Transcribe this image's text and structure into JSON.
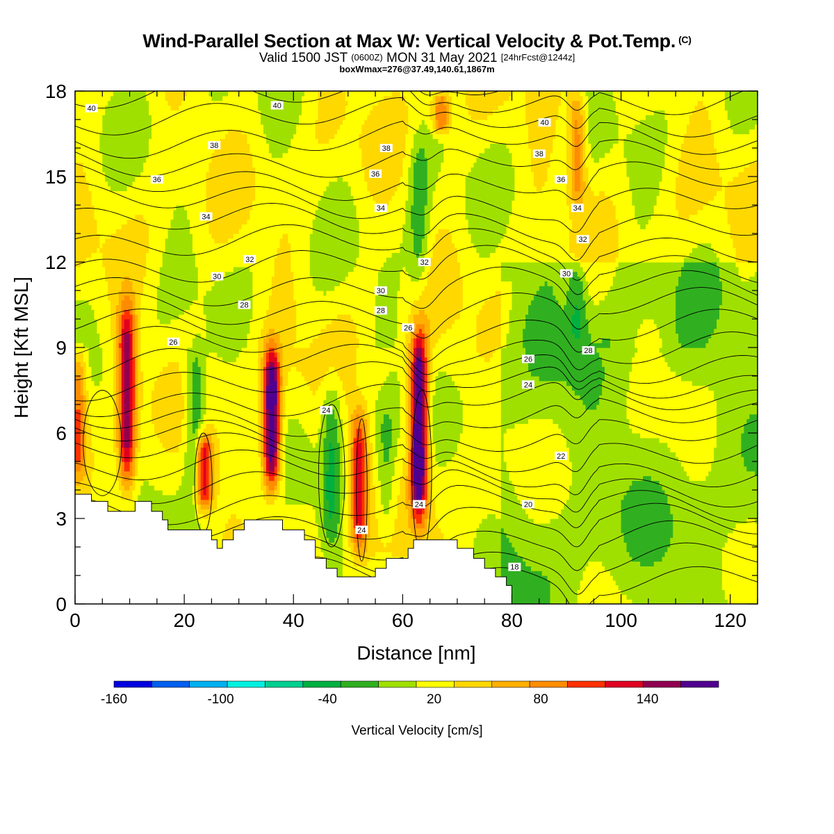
{
  "title": "Wind-Parallel Section at Max W: Vertical Velocity & Pot.Temp.",
  "title_mark": "(C)",
  "subtitle": {
    "valid": "Valid 1500 JST",
    "utc": "(0600Z)",
    "date": "MON 31 May 2021",
    "fcst": "[24hrFcst@1244z]"
  },
  "boxline": "boxWmax=276@37.49,140.61,1867m",
  "chart_data": {
    "type": "heatmap",
    "xlabel": "Distance [nm]",
    "ylabel": "Height [Kft MSL]",
    "xlim": [
      0,
      125
    ],
    "ylim": [
      0,
      18
    ],
    "x_ticks": [
      0,
      20,
      40,
      60,
      80,
      100,
      120
    ],
    "y_ticks": [
      0,
      3,
      6,
      9,
      12,
      15,
      18
    ],
    "colorbar": {
      "label": "Vertical Velocity [cm/s]",
      "min": -160,
      "max": 180,
      "step": 20,
      "tick_values": [
        -160,
        -100,
        -40,
        20,
        80,
        140
      ],
      "tick_labels": [
        "-160",
        "-100",
        "-40",
        "20",
        "80",
        "140"
      ],
      "colors": [
        "#0000e0",
        "#0060f0",
        "#00b0f0",
        "#00f0e0",
        "#00d090",
        "#00b040",
        "#30b020",
        "#a0e000",
        "#ffff00",
        "#ffd800",
        "#ffb000",
        "#ff8c00",
        "#ff3000",
        "#e00020",
        "#900050",
        "#500090"
      ]
    },
    "updrafts": [
      {
        "x": 0.5,
        "base": 4.5,
        "top": 9.0,
        "peak": 80
      },
      {
        "x": 9.5,
        "base": 4.0,
        "top": 10.5,
        "peak": 130
      },
      {
        "x": 23.5,
        "base": 3.3,
        "top": 6.0,
        "peak": 120
      },
      {
        "x": 36,
        "base": 4.0,
        "top": 9.0,
        "peak": 170
      },
      {
        "x": 52,
        "base": 1.8,
        "top": 6.8,
        "peak": 100
      },
      {
        "x": 63,
        "base": 3.0,
        "top": 9.5,
        "peak": 180
      },
      {
        "x": 67,
        "base": 16.5,
        "top": 18.0,
        "peak": 80
      },
      {
        "x": 92,
        "base": 14.0,
        "top": 18.0,
        "peak": 70
      }
    ],
    "downdrafts": [
      {
        "x": 22,
        "base": 3.5,
        "top": 9.0,
        "peak": -60
      },
      {
        "x": 47,
        "base": 2.0,
        "top": 8.0,
        "peak": -50
      },
      {
        "x": 57,
        "base": 2.5,
        "top": 7.0,
        "peak": -40
      },
      {
        "x": 63,
        "base": 11.0,
        "top": 16.5,
        "peak": -40
      },
      {
        "x": 92,
        "base": 9.0,
        "top": 12.0,
        "peak": -40
      }
    ],
    "terrain": [
      [
        0,
        3.85
      ],
      [
        3,
        3.85
      ],
      [
        3,
        3.6
      ],
      [
        6,
        3.6
      ],
      [
        6,
        3.25
      ],
      [
        11,
        3.25
      ],
      [
        11,
        3.6
      ],
      [
        14,
        3.6
      ],
      [
        14,
        3.25
      ],
      [
        16,
        3.25
      ],
      [
        16,
        2.95
      ],
      [
        17,
        2.95
      ],
      [
        17,
        2.6
      ],
      [
        25,
        2.6
      ],
      [
        25,
        2.25
      ],
      [
        26,
        2.25
      ],
      [
        26,
        1.95
      ],
      [
        27,
        1.95
      ],
      [
        27,
        2.25
      ],
      [
        29,
        2.25
      ],
      [
        29,
        2.6
      ],
      [
        31,
        2.6
      ],
      [
        31,
        2.95
      ],
      [
        38,
        2.95
      ],
      [
        38,
        2.6
      ],
      [
        42,
        2.6
      ],
      [
        42,
        2.25
      ],
      [
        44,
        2.25
      ],
      [
        44,
        1.6
      ],
      [
        46,
        1.6
      ],
      [
        46,
        1.25
      ],
      [
        48,
        1.25
      ],
      [
        48,
        0.95
      ],
      [
        55,
        0.95
      ],
      [
        55,
        1.25
      ],
      [
        57,
        1.25
      ],
      [
        57,
        1.6
      ],
      [
        61,
        1.6
      ],
      [
        61,
        1.95
      ],
      [
        62,
        1.95
      ],
      [
        62,
        2.25
      ],
      [
        70,
        2.25
      ],
      [
        70,
        1.95
      ],
      [
        73,
        1.95
      ],
      [
        73,
        1.6
      ],
      [
        75,
        1.6
      ],
      [
        75,
        1.25
      ],
      [
        77,
        1.25
      ],
      [
        77,
        0.95
      ],
      [
        79,
        0.95
      ],
      [
        79,
        0.65
      ],
      [
        80,
        0.65
      ],
      [
        80,
        0.3
      ]
    ],
    "theta_labels": [
      {
        "text": "40",
        "x": 3,
        "y": 17.4
      },
      {
        "text": "40",
        "x": 37,
        "y": 17.5
      },
      {
        "text": "40",
        "x": 86,
        "y": 16.9
      },
      {
        "text": "38",
        "x": 25.5,
        "y": 16.1
      },
      {
        "text": "38",
        "x": 57,
        "y": 16.0
      },
      {
        "text": "38",
        "x": 85,
        "y": 15.8
      },
      {
        "text": "36",
        "x": 15,
        "y": 14.9
      },
      {
        "text": "36",
        "x": 55,
        "y": 15.1
      },
      {
        "text": "36",
        "x": 89,
        "y": 14.9
      },
      {
        "text": "34",
        "x": 24,
        "y": 13.6
      },
      {
        "text": "34",
        "x": 56,
        "y": 13.9
      },
      {
        "text": "34",
        "x": 92,
        "y": 13.9
      },
      {
        "text": "32",
        "x": 32,
        "y": 12.1
      },
      {
        "text": "32",
        "x": 64,
        "y": 12.0
      },
      {
        "text": "32",
        "x": 93,
        "y": 12.8
      },
      {
        "text": "30",
        "x": 26,
        "y": 11.5
      },
      {
        "text": "30",
        "x": 56,
        "y": 11.0
      },
      {
        "text": "30",
        "x": 90,
        "y": 11.6
      },
      {
        "text": "28",
        "x": 31,
        "y": 10.5
      },
      {
        "text": "28",
        "x": 56,
        "y": 10.3
      },
      {
        "text": "28",
        "x": 94,
        "y": 8.9
      },
      {
        "text": "26",
        "x": 18,
        "y": 9.2
      },
      {
        "text": "26",
        "x": 61,
        "y": 9.7
      },
      {
        "text": "26",
        "x": 83,
        "y": 8.6
      },
      {
        "text": "24",
        "x": 46,
        "y": 6.8
      },
      {
        "text": "24",
        "x": 83,
        "y": 7.7
      },
      {
        "text": "24",
        "x": 52.5,
        "y": 2.6
      },
      {
        "text": "24",
        "x": 63,
        "y": 3.5
      },
      {
        "text": "22",
        "x": 89,
        "y": 5.2
      },
      {
        "text": "20",
        "x": 83,
        "y": 3.5
      },
      {
        "text": "18",
        "x": 80.5,
        "y": 1.3
      }
    ]
  }
}
